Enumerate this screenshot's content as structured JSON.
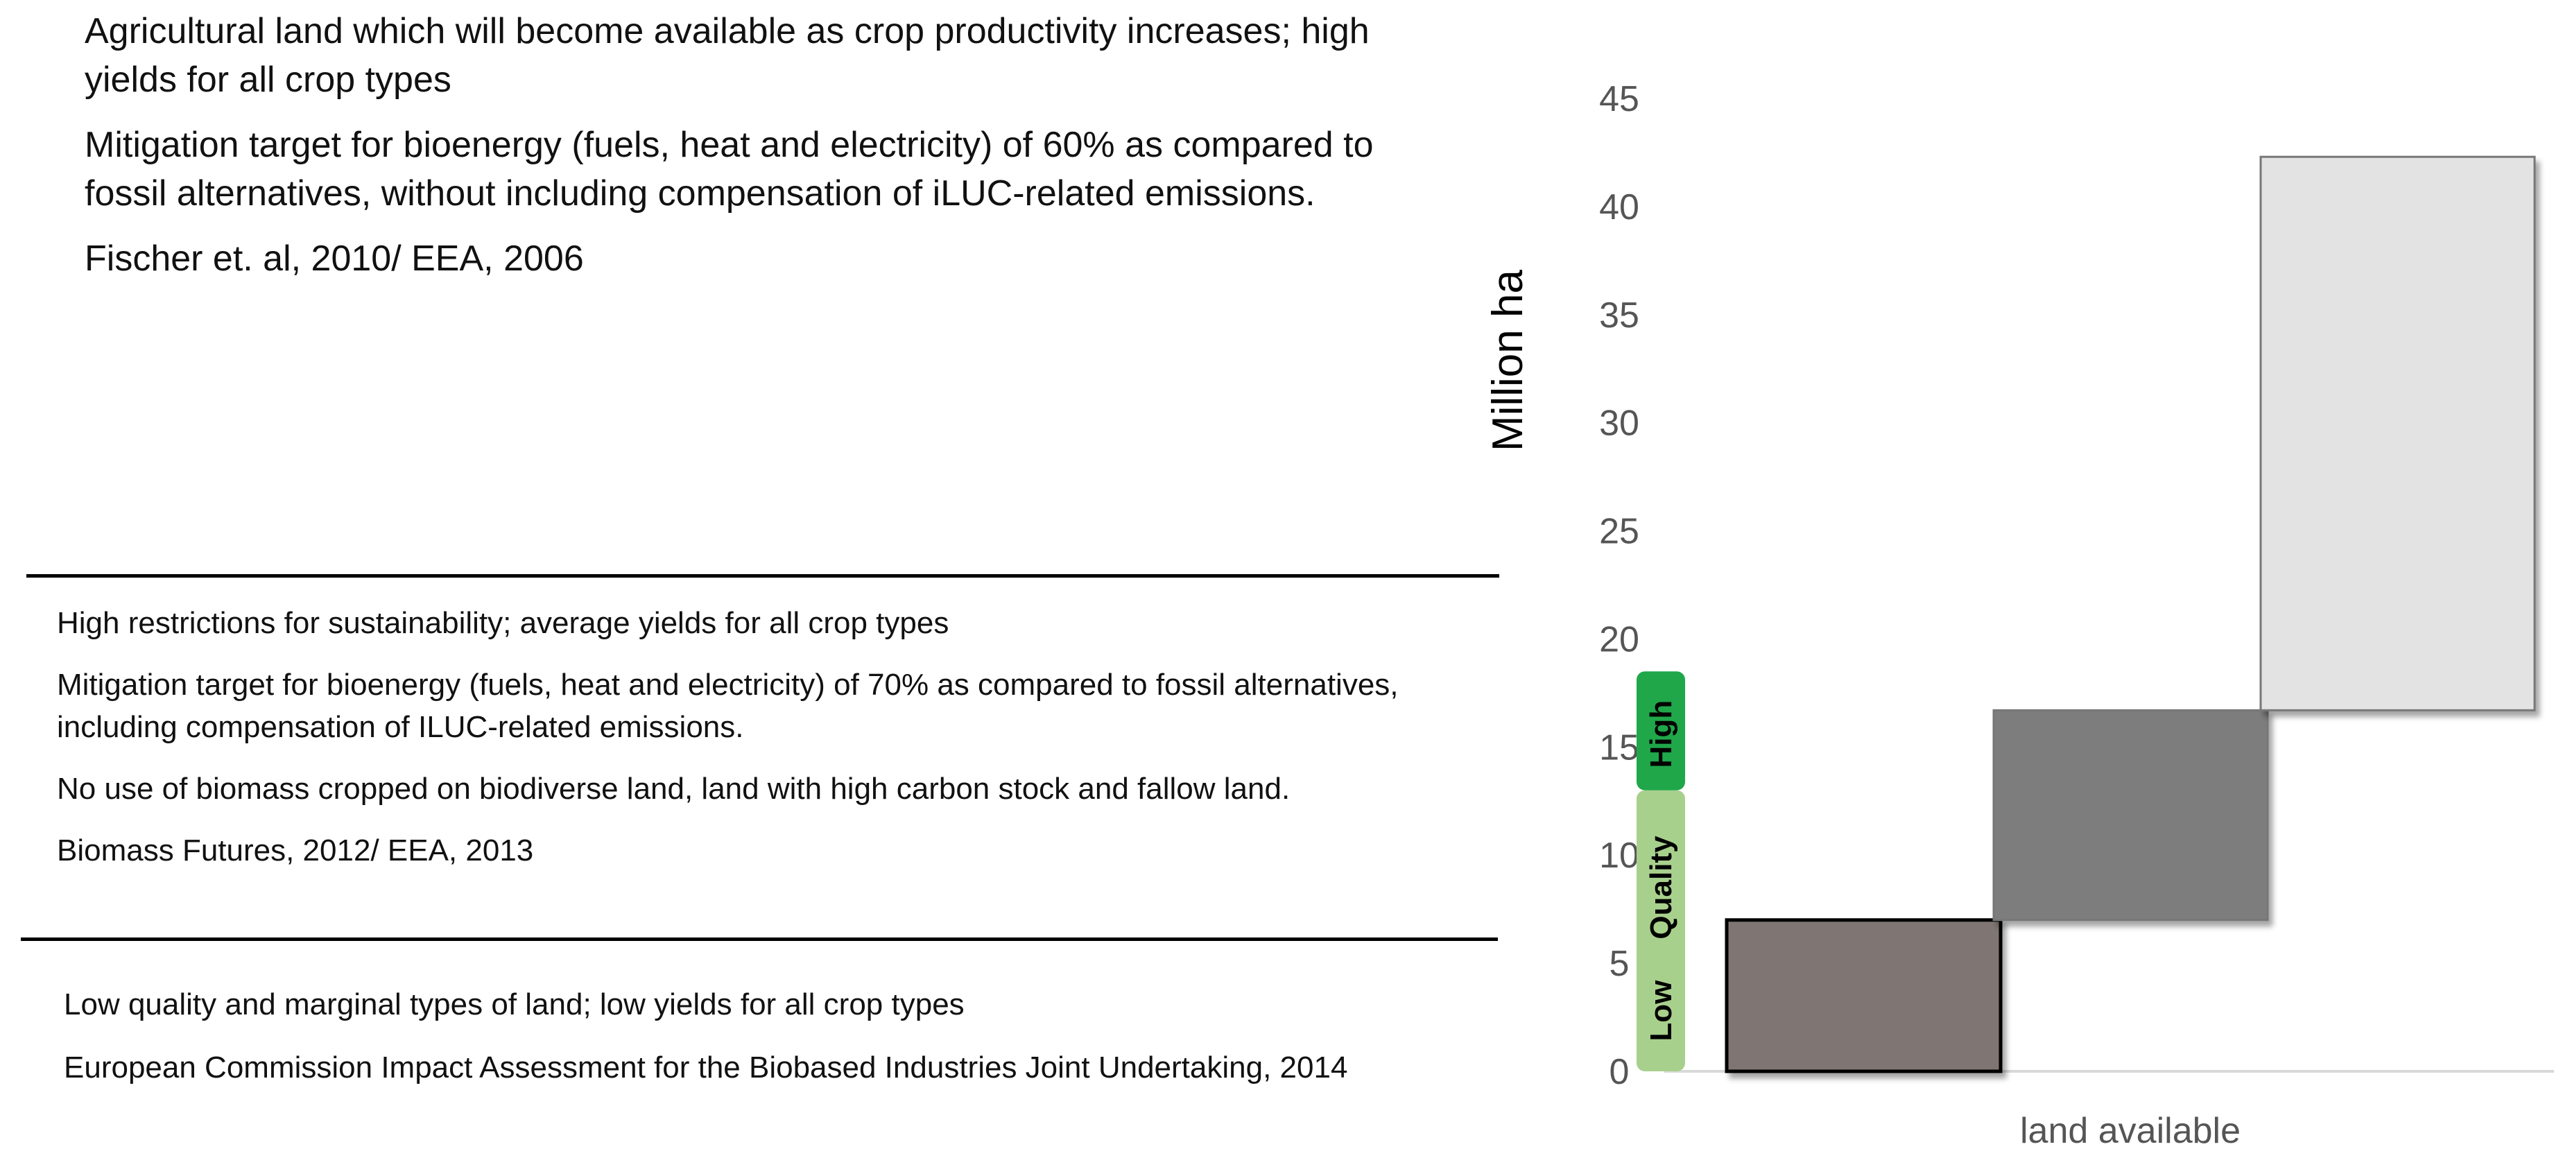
{
  "scenarios": {
    "high": {
      "lines": [
        "Agricultural land which will become available as crop productivity increases; high yields for all crop types",
        "Mitigation target for bioenergy (fuels, heat and electricity) of 60% as compared to fossil alternatives, without including compensation of iLUC-related emissions.",
        "Fischer et. al, 2010/ EEA, 2006"
      ]
    },
    "medium": {
      "lines": [
        "High restrictions for sustainability; average yields for all crop types",
        "Mitigation target for bioenergy (fuels, heat and electricity) of 70% as compared to fossil alternatives, including compensation of ILUC-related emissions.",
        "No use of biomass cropped on biodiverse land, land with high carbon stock and fallow land.",
        "Biomass Futures, 2012/ EEA, 2013"
      ]
    },
    "low": {
      "lines": [
        "Low quality and marginal types of land; low yields for all crop types",
        "European Commission Impact Assessment for the Biobased Industries Joint Undertaking, 2014"
      ]
    }
  },
  "chart_data": {
    "type": "bar",
    "subtype": "floating-stacked",
    "ylabel": "Million ha",
    "xlabel": "",
    "x_category_label": "land available",
    "ylim": [
      0,
      45
    ],
    "yticks": [
      0,
      5,
      10,
      15,
      20,
      25,
      30,
      35,
      40,
      45
    ],
    "grid": false,
    "bars": [
      {
        "bottom": 0,
        "top": 7,
        "color": "#7f7472"
      },
      {
        "bottom": 7,
        "top": 16.7,
        "color": "#7d7d7d"
      },
      {
        "bottom": 16.7,
        "top": 42.3,
        "color": "#e3e3e3"
      }
    ],
    "quality_scale": {
      "labels": [
        "Low",
        "Quality",
        "High"
      ],
      "low_color": "#a8d08d",
      "high_color": "#1fa74a",
      "ranges": [
        [
          0,
          13
        ],
        [
          13,
          18.5
        ]
      ]
    }
  }
}
